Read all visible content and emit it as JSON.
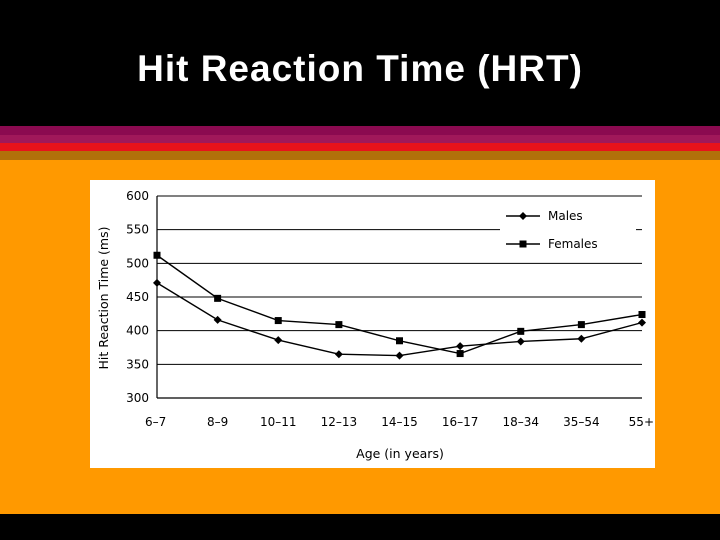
{
  "slide": {
    "title": "Hit Reaction Time (HRT)",
    "colors": {
      "background": "#000000",
      "panel": "#ff9900",
      "stripe_purple": "#8b0a50",
      "stripe_red": "#e8121b",
      "stripe_brown": "#b1700a"
    }
  },
  "chart_data": {
    "type": "line",
    "title": "",
    "xlabel": "Age (in years)",
    "ylabel": "Hit Reaction Time (ms)",
    "categories": [
      "6–7",
      "8–9",
      "10–11",
      "12–13",
      "14–15",
      "16–17",
      "18–34",
      "35–54",
      "55+"
    ],
    "ylim": [
      300,
      600
    ],
    "yticks": [
      "600",
      "550",
      "500",
      "450",
      "400",
      "350",
      "300"
    ],
    "grid": true,
    "legend_position": "top-right",
    "series": [
      {
        "name": "Males",
        "marker": "diamond",
        "values": [
          471,
          416,
          386,
          365,
          363,
          377,
          384,
          388,
          412
        ]
      },
      {
        "name": "Females",
        "marker": "square",
        "values": [
          512,
          448,
          415,
          409,
          385,
          366,
          399,
          409,
          424
        ]
      }
    ]
  }
}
